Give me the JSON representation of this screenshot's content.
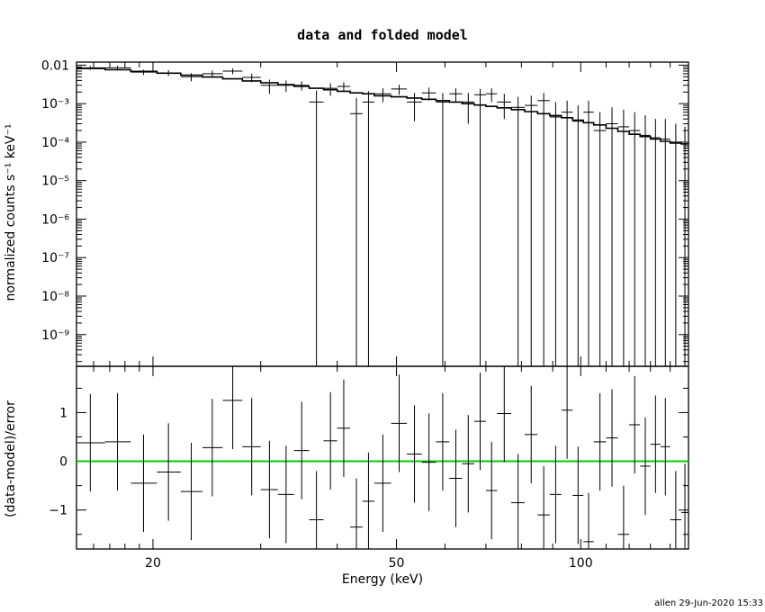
{
  "title": "data and folded model",
  "footer": "allen 29-Jun-2020 15:33",
  "colors": {
    "axes": "#000000",
    "data": "#000000",
    "model": "#000000",
    "zero_line": "#00cc00"
  },
  "chart_data": [
    {
      "type": "line",
      "panel": "top",
      "ylabel": "normalized counts s⁻¹ keV⁻¹",
      "yscale": "log",
      "xscale": "log",
      "xlim": [
        15,
        150
      ],
      "ylim": [
        1.5e-10,
        0.012
      ],
      "yticks": [
        {
          "value": 0.01,
          "label": "0.01"
        },
        {
          "value": 0.001,
          "label": "10⁻³"
        },
        {
          "value": 0.0001,
          "label": "10⁻⁴"
        },
        {
          "value": 1e-05,
          "label": "10⁻⁵"
        },
        {
          "value": 1e-06,
          "label": "10⁻⁶"
        },
        {
          "value": 1e-07,
          "label": "10⁻⁷"
        },
        {
          "value": 1e-08,
          "label": "10⁻⁸"
        },
        {
          "value": 1e-09,
          "label": "10⁻⁹"
        }
      ],
      "data_points": [
        {
          "x": 15.8,
          "xlo": 15.0,
          "xhi": 16.7,
          "y": 0.0085,
          "ylo": 0.0075,
          "yhi": 0.0095
        },
        {
          "x": 17.5,
          "xlo": 16.7,
          "xhi": 18.4,
          "y": 0.0085,
          "ylo": 0.0073,
          "yhi": 0.0097
        },
        {
          "x": 19.3,
          "xlo": 18.4,
          "xhi": 20.3,
          "y": 0.0066,
          "ylo": 0.0056,
          "yhi": 0.0076
        },
        {
          "x": 21.2,
          "xlo": 20.3,
          "xhi": 22.2,
          "y": 0.0063,
          "ylo": 0.0052,
          "yhi": 0.0074
        },
        {
          "x": 23.1,
          "xlo": 22.2,
          "xhi": 24.1,
          "y": 0.005,
          "ylo": 0.0038,
          "yhi": 0.0062
        },
        {
          "x": 25.0,
          "xlo": 24.1,
          "xhi": 26.0,
          "y": 0.006,
          "ylo": 0.0048,
          "yhi": 0.0072
        },
        {
          "x": 27.0,
          "xlo": 26.0,
          "xhi": 28.0,
          "y": 0.007,
          "ylo": 0.0058,
          "yhi": 0.0082
        },
        {
          "x": 29.0,
          "xlo": 28.0,
          "xhi": 30.0,
          "y": 0.0048,
          "ylo": 0.0036,
          "yhi": 0.006
        },
        {
          "x": 31.0,
          "xlo": 30.0,
          "xhi": 32.0,
          "y": 0.003,
          "ylo": 0.0018,
          "yhi": 0.0042
        },
        {
          "x": 33.0,
          "xlo": 32.0,
          "xhi": 34.0,
          "y": 0.003,
          "ylo": 0.002,
          "yhi": 0.004
        },
        {
          "x": 35.0,
          "xlo": 34.0,
          "xhi": 36.0,
          "y": 0.003,
          "ylo": 0.0022,
          "yhi": 0.0038
        },
        {
          "x": 37.0,
          "xlo": 36.0,
          "xhi": 38.0,
          "y": 0.0011,
          "ylo": 1.5e-10,
          "yhi": 0.0022
        },
        {
          "x": 39.0,
          "xlo": 38.0,
          "xhi": 40.0,
          "y": 0.0025,
          "ylo": 0.0016,
          "yhi": 0.0034
        },
        {
          "x": 41.0,
          "xlo": 40.0,
          "xhi": 42.0,
          "y": 0.0028,
          "ylo": 0.002,
          "yhi": 0.0036
        },
        {
          "x": 43.0,
          "xlo": 42.0,
          "xhi": 44.0,
          "y": 0.00055,
          "ylo": 1.5e-10,
          "yhi": 0.0014
        },
        {
          "x": 45.0,
          "xlo": 44.0,
          "xhi": 46.0,
          "y": 0.0011,
          "ylo": 1.5e-10,
          "yhi": 0.0021
        },
        {
          "x": 47.5,
          "xlo": 46.0,
          "xhi": 49.0,
          "y": 0.0018,
          "ylo": 0.0011,
          "yhi": 0.0025
        },
        {
          "x": 50.5,
          "xlo": 49.0,
          "xhi": 52.0,
          "y": 0.0024,
          "ylo": 0.0017,
          "yhi": 0.0031
        },
        {
          "x": 53.5,
          "xlo": 52.0,
          "xhi": 55.0,
          "y": 0.0011,
          "ylo": 0.00035,
          "yhi": 0.0019
        },
        {
          "x": 56.5,
          "xlo": 55.0,
          "xhi": 58.0,
          "y": 0.0019,
          "ylo": 0.0012,
          "yhi": 0.0026
        },
        {
          "x": 59.5,
          "xlo": 58.0,
          "xhi": 61.0,
          "y": 0.0011,
          "ylo": 1.5e-10,
          "yhi": 0.0019
        },
        {
          "x": 62.5,
          "xlo": 61.0,
          "xhi": 64.0,
          "y": 0.0018,
          "ylo": 0.0011,
          "yhi": 0.0025
        },
        {
          "x": 65.5,
          "xlo": 64.0,
          "xhi": 67.0,
          "y": 0.0011,
          "ylo": 0.0003,
          "yhi": 0.0019
        },
        {
          "x": 68.5,
          "xlo": 67.0,
          "xhi": 70.0,
          "y": 0.0017,
          "ylo": 1.5e-10,
          "yhi": 0.0024
        },
        {
          "x": 71.5,
          "xlo": 70.0,
          "xhi": 73.0,
          "y": 0.0018,
          "ylo": 0.0011,
          "yhi": 0.0025
        },
        {
          "x": 75.0,
          "xlo": 73.0,
          "xhi": 77.0,
          "y": 0.0011,
          "ylo": 0.0004,
          "yhi": 0.0018
        },
        {
          "x": 79.0,
          "xlo": 77.0,
          "xhi": 81.0,
          "y": 0.0008,
          "ylo": 1.5e-10,
          "yhi": 0.0015
        },
        {
          "x": 83.0,
          "xlo": 81.0,
          "xhi": 85.0,
          "y": 0.0009,
          "ylo": 1.5e-10,
          "yhi": 0.0016
        },
        {
          "x": 87.0,
          "xlo": 85.0,
          "xhi": 89.0,
          "y": 0.0012,
          "ylo": 1.5e-10,
          "yhi": 0.0019
        },
        {
          "x": 91.0,
          "xlo": 89.0,
          "xhi": 93.0,
          "y": 0.00045,
          "ylo": 1.5e-10,
          "yhi": 0.0011
        },
        {
          "x": 95.0,
          "xlo": 93.0,
          "xhi": 97.0,
          "y": 0.0006,
          "ylo": 1.5e-10,
          "yhi": 0.0012
        },
        {
          "x": 99.0,
          "xlo": 97.0,
          "xhi": 101.0,
          "y": 0.00035,
          "ylo": 1.5e-10,
          "yhi": 0.0009
        },
        {
          "x": 103.0,
          "xlo": 101.0,
          "xhi": 105.0,
          "y": 0.0006,
          "ylo": 1.5e-10,
          "yhi": 0.0012
        },
        {
          "x": 107.5,
          "xlo": 105.0,
          "xhi": 110.0,
          "y": 0.0002,
          "ylo": 1.5e-10,
          "yhi": 0.0006
        },
        {
          "x": 112.5,
          "xlo": 110.0,
          "xhi": 115.0,
          "y": 0.0003,
          "ylo": 1.5e-10,
          "yhi": 0.0008
        },
        {
          "x": 117.5,
          "xlo": 115.0,
          "xhi": 120.0,
          "y": 0.00025,
          "ylo": 1.5e-10,
          "yhi": 0.0007
        },
        {
          "x": 122.5,
          "xlo": 120.0,
          "xhi": 125.0,
          "y": 0.0002,
          "ylo": 1.5e-10,
          "yhi": 0.0006
        },
        {
          "x": 127.5,
          "xlo": 125.0,
          "xhi": 130.0,
          "y": 0.00015,
          "ylo": 1.5e-10,
          "yhi": 0.0005
        },
        {
          "x": 132.5,
          "xlo": 130.0,
          "xhi": 135.0,
          "y": 0.00013,
          "ylo": 1.5e-10,
          "yhi": 0.0004
        },
        {
          "x": 137.5,
          "xlo": 135.0,
          "xhi": 140.0,
          "y": 0.00012,
          "ylo": 1.5e-10,
          "yhi": 0.0004
        },
        {
          "x": 143.0,
          "xlo": 140.0,
          "xhi": 146.0,
          "y": 0.0001,
          "ylo": 1.5e-10,
          "yhi": 0.0003
        },
        {
          "x": 148.0,
          "xlo": 146.0,
          "xhi": 150.0,
          "y": 9e-05,
          "ylo": 1.5e-10,
          "yhi": 0.00025
        }
      ],
      "model": {
        "x": [
          15,
          16.7,
          18.4,
          20.3,
          22.2,
          24.1,
          26.0,
          28.0,
          30.0,
          32.0,
          34.0,
          36.0,
          38.0,
          40.0,
          42.0,
          44.0,
          46.0,
          49.0,
          52.0,
          55.0,
          58.0,
          61.0,
          64.0,
          67.0,
          70.0,
          73.0,
          77.0,
          81.0,
          85.0,
          89.0,
          93.0,
          97.0,
          101.0,
          105.0,
          110.0,
          115.0,
          120.0,
          125.0,
          130.0,
          135.0,
          140.0,
          146.0,
          150.0
        ],
        "y": [
          0.0082,
          0.0076,
          0.0069,
          0.0062,
          0.0055,
          0.0049,
          0.0044,
          0.0039,
          0.0035,
          0.0031,
          0.0028,
          0.0025,
          0.0023,
          0.0021,
          0.0019,
          0.0018,
          0.0016,
          0.0015,
          0.0014,
          0.0013,
          0.0012,
          0.0011,
          0.001,
          0.00092,
          0.00085,
          0.00078,
          0.0007,
          0.00062,
          0.00055,
          0.00049,
          0.00043,
          0.00037,
          0.00032,
          0.00028,
          0.00023,
          0.00019,
          0.00016,
          0.00014,
          0.00012,
          0.000105,
          9.5e-05,
          9e-05,
          8.8e-05
        ]
      }
    },
    {
      "type": "scatter",
      "panel": "bottom",
      "xlabel": "Energy (keV)",
      "ylabel": "(data-model)/error",
      "xscale": "log",
      "xlim": [
        15,
        150
      ],
      "ylim": [
        -1.8,
        1.95
      ],
      "xticks": [
        {
          "value": 20,
          "label": "20"
        },
        {
          "value": 50,
          "label": "50"
        },
        {
          "value": 100,
          "label": "100"
        }
      ],
      "yticks": [
        {
          "value": 1,
          "label": "1"
        },
        {
          "value": 0,
          "label": "0"
        },
        {
          "value": -1,
          "label": "−1"
        }
      ],
      "zero_line": 0,
      "residuals": [
        {
          "x": 15.8,
          "xlo": 15.0,
          "xhi": 16.7,
          "y": 0.38
        },
        {
          "x": 17.5,
          "xlo": 16.7,
          "xhi": 18.4,
          "y": 0.4
        },
        {
          "x": 19.3,
          "xlo": 18.4,
          "xhi": 20.3,
          "y": -0.45
        },
        {
          "x": 21.2,
          "xlo": 20.3,
          "xhi": 22.2,
          "y": -0.22
        },
        {
          "x": 23.1,
          "xlo": 22.2,
          "xhi": 24.1,
          "y": -0.62
        },
        {
          "x": 25.0,
          "xlo": 24.1,
          "xhi": 26.0,
          "y": 0.28
        },
        {
          "x": 27.0,
          "xlo": 26.0,
          "xhi": 28.0,
          "y": 1.25
        },
        {
          "x": 29.0,
          "xlo": 28.0,
          "xhi": 30.0,
          "y": 0.3
        },
        {
          "x": 31.0,
          "xlo": 30.0,
          "xhi": 32.0,
          "y": -0.58
        },
        {
          "x": 33.0,
          "xlo": 32.0,
          "xhi": 34.0,
          "y": -0.68
        },
        {
          "x": 35.0,
          "xlo": 34.0,
          "xhi": 36.0,
          "y": 0.22
        },
        {
          "x": 37.0,
          "xlo": 36.0,
          "xhi": 38.0,
          "y": -1.2
        },
        {
          "x": 39.0,
          "xlo": 38.0,
          "xhi": 40.0,
          "y": 0.42
        },
        {
          "x": 41.0,
          "xlo": 40.0,
          "xhi": 42.0,
          "y": 0.68
        },
        {
          "x": 43.0,
          "xlo": 42.0,
          "xhi": 44.0,
          "y": -1.35
        },
        {
          "x": 45.0,
          "xlo": 44.0,
          "xhi": 46.0,
          "y": -0.82
        },
        {
          "x": 47.5,
          "xlo": 46.0,
          "xhi": 49.0,
          "y": -0.45
        },
        {
          "x": 50.5,
          "xlo": 49.0,
          "xhi": 52.0,
          "y": 0.78
        },
        {
          "x": 53.5,
          "xlo": 52.0,
          "xhi": 55.0,
          "y": 0.15
        },
        {
          "x": 56.5,
          "xlo": 55.0,
          "xhi": 58.0,
          "y": -0.02
        },
        {
          "x": 59.5,
          "xlo": 58.0,
          "xhi": 61.0,
          "y": 0.4
        },
        {
          "x": 62.5,
          "xlo": 61.0,
          "xhi": 64.0,
          "y": -0.35
        },
        {
          "x": 65.5,
          "xlo": 64.0,
          "xhi": 67.0,
          "y": -0.05
        },
        {
          "x": 68.5,
          "xlo": 67.0,
          "xhi": 70.0,
          "y": 0.82
        },
        {
          "x": 71.5,
          "xlo": 70.0,
          "xhi": 73.0,
          "y": -0.6
        },
        {
          "x": 75.0,
          "xlo": 73.0,
          "xhi": 77.0,
          "y": 0.98
        },
        {
          "x": 79.0,
          "xlo": 77.0,
          "xhi": 81.0,
          "y": -0.85
        },
        {
          "x": 83.0,
          "xlo": 81.0,
          "xhi": 85.0,
          "y": 0.55
        },
        {
          "x": 87.0,
          "xlo": 85.0,
          "xhi": 89.0,
          "y": -1.1
        },
        {
          "x": 91.0,
          "xlo": 89.0,
          "xhi": 93.0,
          "y": -0.68
        },
        {
          "x": 95.0,
          "xlo": 93.0,
          "xhi": 97.0,
          "y": 1.05
        },
        {
          "x": 99.0,
          "xlo": 97.0,
          "xhi": 101.0,
          "y": -0.7
        },
        {
          "x": 103.0,
          "xlo": 101.0,
          "xhi": 105.0,
          "y": -1.65
        },
        {
          "x": 107.5,
          "xlo": 105.0,
          "xhi": 110.0,
          "y": 0.4
        },
        {
          "x": 112.5,
          "xlo": 110.0,
          "xhi": 115.0,
          "y": 0.48
        },
        {
          "x": 117.5,
          "xlo": 115.0,
          "xhi": 120.0,
          "y": -1.5
        },
        {
          "x": 122.5,
          "xlo": 120.0,
          "xhi": 125.0,
          "y": 0.75
        },
        {
          "x": 127.5,
          "xlo": 125.0,
          "xhi": 130.0,
          "y": -0.1
        },
        {
          "x": 132.5,
          "xlo": 130.0,
          "xhi": 135.0,
          "y": 0.35
        },
        {
          "x": 137.5,
          "xlo": 135.0,
          "xhi": 140.0,
          "y": 0.3
        },
        {
          "x": 143.0,
          "xlo": 140.0,
          "xhi": 146.0,
          "y": -1.2
        },
        {
          "x": 148.0,
          "xlo": 146.0,
          "xhi": 150.0,
          "y": -1.05
        }
      ]
    }
  ]
}
